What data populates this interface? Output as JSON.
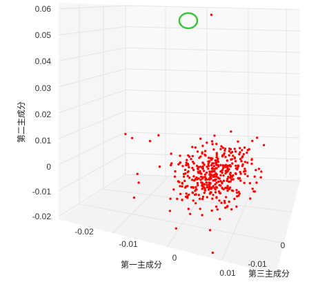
{
  "chart_data": {
    "type": "scatter",
    "dimensions": 3,
    "x_axis_title": "第一主成分",
    "y_axis_title": "第二主成分",
    "z_axis_title": "第三主成分",
    "x_ticks": [
      "-0.02",
      "-0.01",
      "0",
      "0.01"
    ],
    "y_ticks": [
      "0.06",
      "0.05",
      "0.04",
      "0.03",
      "0.02",
      "0.01",
      "0",
      "-0.01",
      "-0.02"
    ],
    "z_ticks": [
      "-0.01",
      "0"
    ],
    "ylim": [
      -0.02,
      0.06
    ],
    "marker_color": "#ff0000",
    "highlight_color": "#39c23a",
    "outlier_point": {
      "pc1": 0.003,
      "pc2": 0.058,
      "pc3": -0.005
    },
    "cluster": {
      "point_count": 420,
      "pc1_range": [
        -0.012,
        0.012
      ],
      "pc2_range": [
        -0.013,
        0.003
      ],
      "pc2_center": -0.004,
      "pc3_range": [
        -0.018,
        0.008
      ]
    },
    "grid": true
  }
}
